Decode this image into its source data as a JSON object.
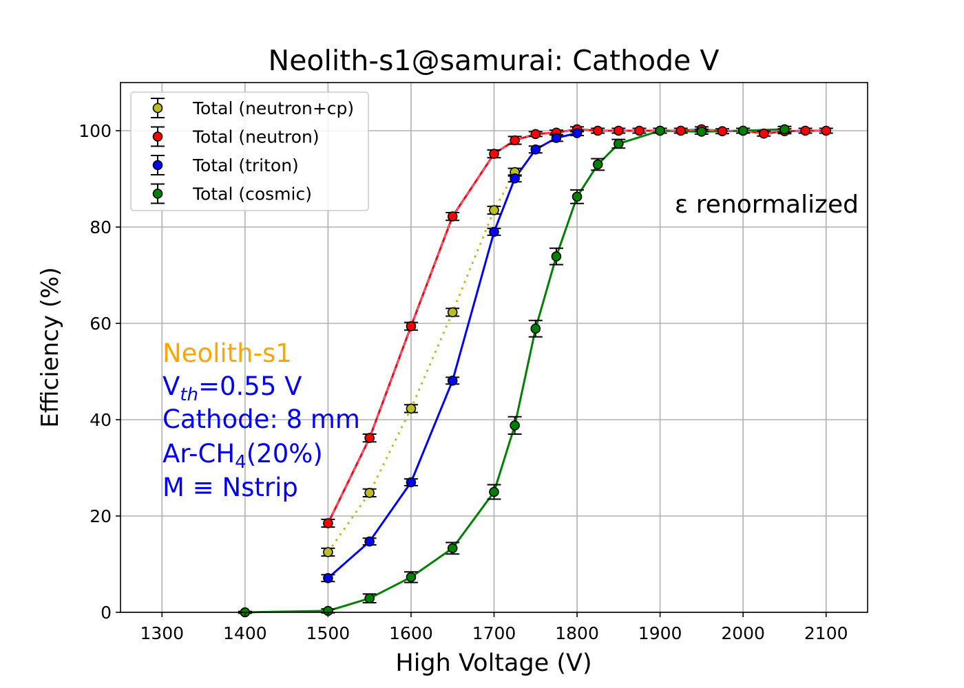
{
  "chart_data": {
    "type": "line",
    "title": "Neolith-s1@samurai: Cathode V",
    "xlabel": "High Voltage (V)",
    "ylabel": "Efficiency (%)",
    "xlim": [
      1250,
      2150
    ],
    "ylim": [
      0,
      110
    ],
    "xticks": [
      1300,
      1400,
      1500,
      1600,
      1700,
      1800,
      1900,
      2000,
      2100
    ],
    "yticks": [
      0,
      20,
      40,
      60,
      80,
      100
    ],
    "grid": true,
    "legend_position": "top-left",
    "series": [
      {
        "name": "Total (neutron+cp)",
        "color": "#bcbd22",
        "line_style": "dotted",
        "x": [
          1500,
          1550,
          1600,
          1650,
          1700,
          1725
        ],
        "y": [
          12.5,
          24.8,
          42.3,
          62.3,
          83.5,
          91.4
        ],
        "err": [
          0.8,
          0.8,
          0.8,
          0.8,
          0.8,
          0.8
        ]
      },
      {
        "name": "Total (neutron)",
        "color": "#ff0000",
        "line_style": "solid",
        "x": [
          1500,
          1550,
          1600,
          1650,
          1700,
          1725,
          1750,
          1775,
          1800,
          1825,
          1850,
          1875,
          1900,
          1925,
          1950,
          1975,
          2000,
          2025,
          2050,
          2075,
          2100
        ],
        "y": [
          18.5,
          36.2,
          59.4,
          82.2,
          95.2,
          98.0,
          99.3,
          99.6,
          100.3,
          100.0,
          100.0,
          100.0,
          100.0,
          100.0,
          100.3,
          99.9,
          100.0,
          99.4,
          99.9,
          100.0,
          100.0
        ],
        "err": [
          0.8,
          0.8,
          0.8,
          0.8,
          0.8,
          0.8,
          0.5,
          0.5,
          0.5,
          0.5,
          0.5,
          0.5,
          0.5,
          0.5,
          0.5,
          0.5,
          0.5,
          0.5,
          0.5,
          0.5,
          0.5
        ]
      },
      {
        "name": "Total (triton)",
        "color": "#0000ff",
        "line_style": "solid",
        "x": [
          1500,
          1550,
          1600,
          1650,
          1700,
          1725,
          1750,
          1775,
          1800
        ],
        "y": [
          7.1,
          14.7,
          27.0,
          48.1,
          79.0,
          90.1,
          96.1,
          98.5,
          99.5
        ],
        "err": [
          0.7,
          0.7,
          0.7,
          0.7,
          0.7,
          0.7,
          0.7,
          0.7,
          0.5
        ]
      },
      {
        "name": "Total (cosmic)",
        "color": "#008000",
        "line_style": "solid",
        "x": [
          1400,
          1500,
          1550,
          1600,
          1650,
          1700,
          1725,
          1750,
          1775,
          1800,
          1825,
          1850,
          1900,
          1950,
          2000,
          2050
        ],
        "y": [
          0.0,
          0.3,
          2.9,
          7.3,
          13.3,
          25.0,
          38.8,
          58.9,
          73.9,
          86.3,
          93.0,
          97.3,
          100.0,
          99.8,
          100.0,
          100.3
        ],
        "err": [
          0.2,
          0.4,
          0.9,
          1.1,
          1.2,
          1.5,
          1.8,
          1.7,
          1.7,
          1.4,
          1.2,
          0.9,
          0.5,
          0.5,
          0.5,
          0.6
        ]
      }
    ],
    "annotations": {
      "renorm": "ε renormalized",
      "detector": "Neolith-s1",
      "vth_main": "V",
      "vth_sub": "th",
      "vth_rest": "=0.55 V",
      "cathode": "Cathode: 8 mm",
      "gas_main": "Ar-CH",
      "gas_sub": "4",
      "gas_rest": "(20%)",
      "mult": "M ≡ Nstrip"
    },
    "annotation_colors": {
      "detector": "#ffa500",
      "info": "#0000ff"
    }
  }
}
